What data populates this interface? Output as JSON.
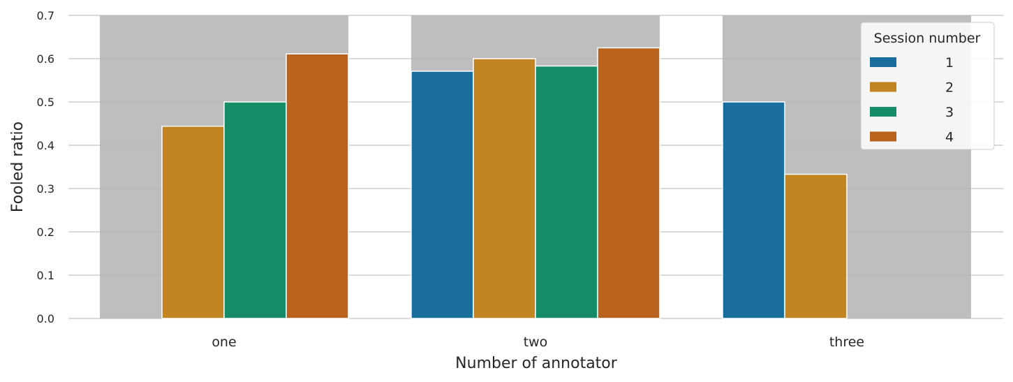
{
  "chart_data": {
    "type": "bar",
    "categories": [
      "one",
      "two",
      "three"
    ],
    "series": [
      {
        "name": "1",
        "color": "#1a6e9e",
        "values": [
          null,
          0.571,
          0.5
        ]
      },
      {
        "name": "2",
        "color": "#c28521",
        "values": [
          0.444,
          0.6,
          0.333
        ]
      },
      {
        "name": "3",
        "color": "#168b68",
        "values": [
          0.5,
          0.583,
          null
        ]
      },
      {
        "name": "4",
        "color": "#b9621e",
        "values": [
          0.611,
          0.625,
          null
        ]
      }
    ],
    "xlabel": "Number of annotator",
    "ylabel": "Fooled ratio",
    "ylim": [
      0,
      0.7
    ],
    "yticks": [
      "0.0",
      "0.1",
      "0.2",
      "0.3",
      "0.4",
      "0.5",
      "0.6",
      "0.7"
    ],
    "legend": {
      "title": "Session number",
      "placement": "top-right"
    },
    "background_band_color": "#bebebe",
    "grid": true
  }
}
